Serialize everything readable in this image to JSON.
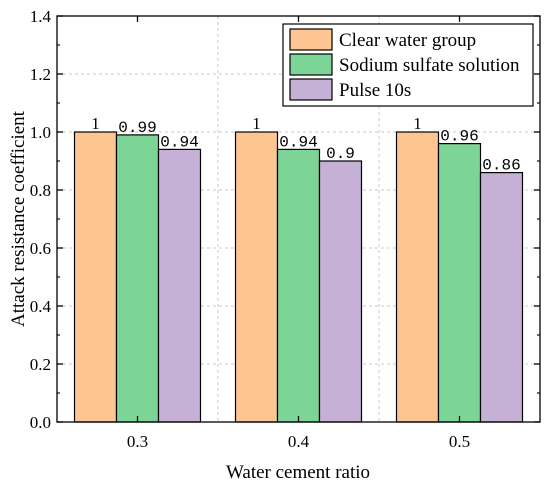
{
  "chart_data": {
    "type": "bar",
    "title": "",
    "xlabel": "Water cement ratio",
    "ylabel": "Attack resistance coefficient",
    "categories": [
      "0.3",
      "0.4",
      "0.5"
    ],
    "ylim": [
      0,
      1.4
    ],
    "yticks": [
      "0.0",
      "0.2",
      "0.4",
      "0.6",
      "0.8",
      "1.0",
      "1.2",
      "1.4"
    ],
    "grid": true,
    "legend_position": "top-right",
    "series": [
      {
        "name": "Clear water group",
        "color": "#fcc592",
        "values": [
          1,
          1,
          1
        ],
        "labels": [
          "1",
          "1",
          "1"
        ]
      },
      {
        "name": "Sodium sulfate solution",
        "color": "#7cd596",
        "values": [
          0.99,
          0.94,
          0.96
        ],
        "labels": [
          "0.99",
          "0.94",
          "0.96"
        ]
      },
      {
        "name": "Pulse 10s",
        "color": "#c5b1d6",
        "values": [
          0.94,
          0.9,
          0.86
        ],
        "labels": [
          "0.94",
          "0.9",
          "0.86"
        ]
      }
    ]
  }
}
